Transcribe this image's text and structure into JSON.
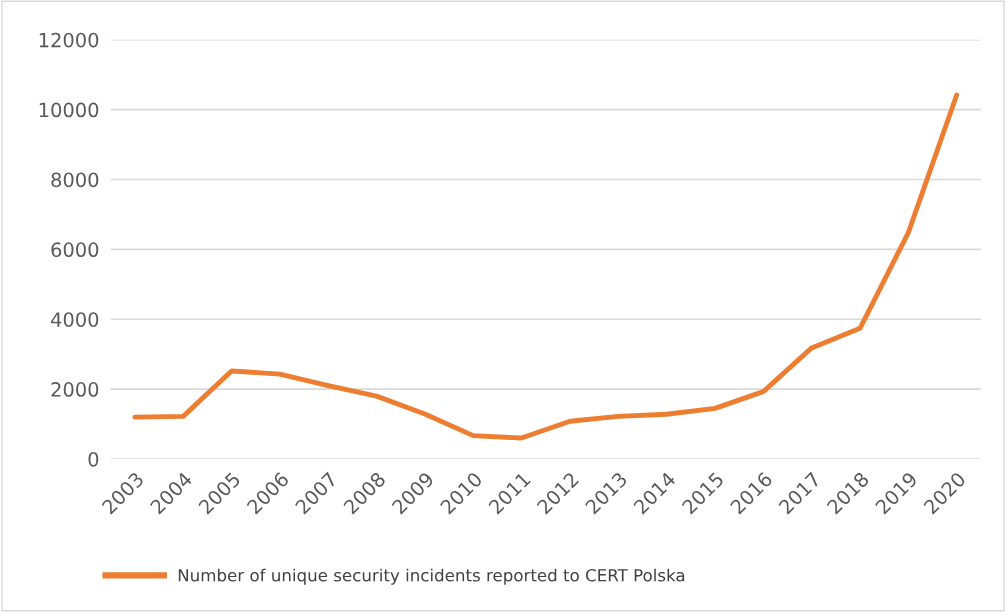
{
  "chart_data": {
    "type": "line",
    "categories": [
      "2003",
      "2004",
      "2005",
      "2006",
      "2007",
      "2008",
      "2009",
      "2010",
      "2011",
      "2012",
      "2013",
      "2014",
      "2015",
      "2016",
      "2017",
      "2018",
      "2019",
      "2020"
    ],
    "series": [
      {
        "name": "Number of unique security incidents reported to CERT Polska",
        "color": "#ed7d31",
        "values": [
          1200,
          1220,
          2520,
          2430,
          2100,
          1800,
          1290,
          670,
          600,
          1080,
          1220,
          1280,
          1450,
          1930,
          3180,
          3740,
          6480,
          10420
        ]
      }
    ],
    "ylim": [
      0,
      12000
    ],
    "yticks": [
      0,
      2000,
      4000,
      6000,
      8000,
      10000,
      12000
    ],
    "grid": "y",
    "legend": "bottom left",
    "marker": "none",
    "line_style": "solid"
  }
}
